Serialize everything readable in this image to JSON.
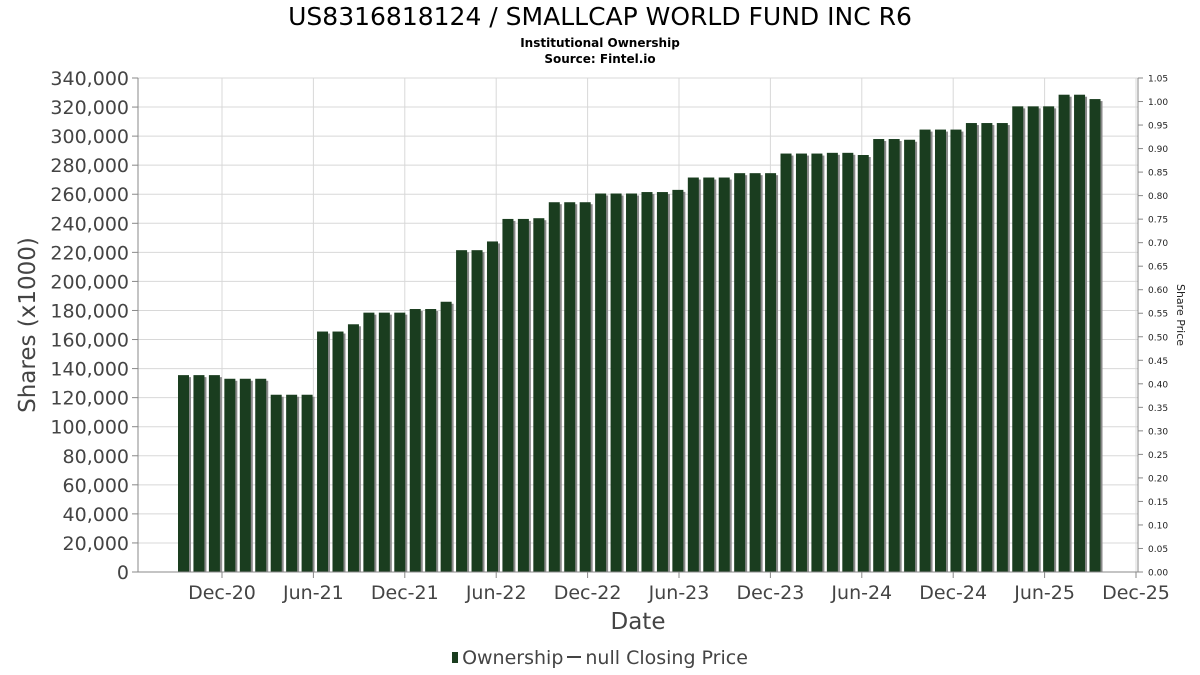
{
  "chart_data": {
    "type": "bar",
    "title": "US8316818124 / SMALLCAP WORLD FUND INC R6",
    "subtitle_line1": "Institutional Ownership",
    "subtitle_line2": "Source: Fintel.io",
    "xlabel": "Date",
    "ylabel": "Shares (x1000)",
    "y2label": "Share Price",
    "ylim": [
      0,
      340000
    ],
    "y2lim": [
      0,
      1.05
    ],
    "yticks": [
      "0",
      "20,000",
      "40,000",
      "60,000",
      "80,000",
      "100,000",
      "120,000",
      "140,000",
      "160,000",
      "180,000",
      "200,000",
      "220,000",
      "240,000",
      "260,000",
      "280,000",
      "300,000",
      "320,000",
      "340,000"
    ],
    "y2ticks": [
      "0.00",
      "0.05",
      "0.10",
      "0.15",
      "0.20",
      "0.25",
      "0.30",
      "0.35",
      "0.40",
      "0.45",
      "0.50",
      "0.55",
      "0.60",
      "0.65",
      "0.70",
      "0.75",
      "0.80",
      "0.85",
      "0.90",
      "0.95",
      "1.00",
      "1.05"
    ],
    "xticks": [
      "Dec-20",
      "Jun-21",
      "Dec-21",
      "Jun-22",
      "Dec-22",
      "Jun-23",
      "Dec-23",
      "Jun-24",
      "Dec-24",
      "Jun-25",
      "Dec-25"
    ],
    "grid": true,
    "legend_position": "bottom",
    "colors": {
      "bar": "#1a3d1f",
      "bar_shadow": "#8a8a8a",
      "grid": "#d8d8d8"
    },
    "series": [
      {
        "name": "Ownership",
        "values": [
          135500,
          135500,
          135500,
          133000,
          133000,
          133000,
          122000,
          122000,
          122000,
          165500,
          165500,
          170500,
          178500,
          178500,
          178500,
          181000,
          181000,
          186000,
          221500,
          221500,
          227500,
          243000,
          243000,
          243500,
          254500,
          254500,
          254500,
          260500,
          260500,
          260500,
          261500,
          261500,
          263000,
          271500,
          271500,
          271500,
          274500,
          274500,
          274500,
          288000,
          288000,
          288000,
          288500,
          288500,
          287000,
          298000,
          298000,
          297500,
          304500,
          304500,
          304500,
          309000,
          309000,
          309000,
          320500,
          320500,
          320500,
          328500,
          328500,
          325500
        ]
      },
      {
        "name": "null Closing Price",
        "values": []
      }
    ]
  },
  "legend": {
    "ownership_label": "Ownership",
    "price_label": "null Closing Price"
  }
}
